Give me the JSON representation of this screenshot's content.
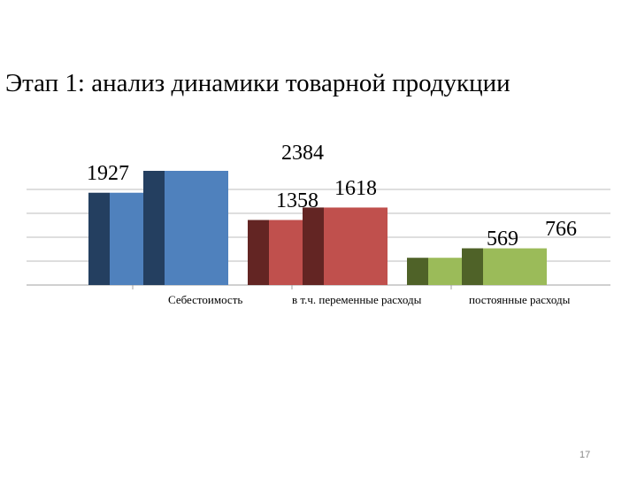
{
  "slide": {
    "title": "Этап 1: анализ динамики товарной продукции",
    "page_number": "17"
  },
  "chart_data": {
    "type": "bar",
    "title": "",
    "xlabel": "",
    "ylabel": "",
    "categories": [
      "Себестоимость",
      "в т.ч. переменные расходы",
      "постоянные расходы"
    ],
    "series": [
      {
        "values": [
          1927,
          1358,
          569
        ]
      },
      {
        "values": [
          2384,
          1618,
          766
        ]
      }
    ],
    "data_labels": [
      [
        "1927",
        "2384"
      ],
      [
        "1358",
        "1618"
      ],
      [
        "569",
        "766"
      ]
    ],
    "ylim": [
      0,
      2400
    ],
    "grid": true,
    "legend": "none",
    "colors": [
      {
        "dark": "#243f60",
        "light": "#4f81bd"
      },
      {
        "dark": "#632523",
        "light": "#c0504d"
      },
      {
        "dark": "#4f6228",
        "light": "#9bbb59"
      }
    ]
  }
}
